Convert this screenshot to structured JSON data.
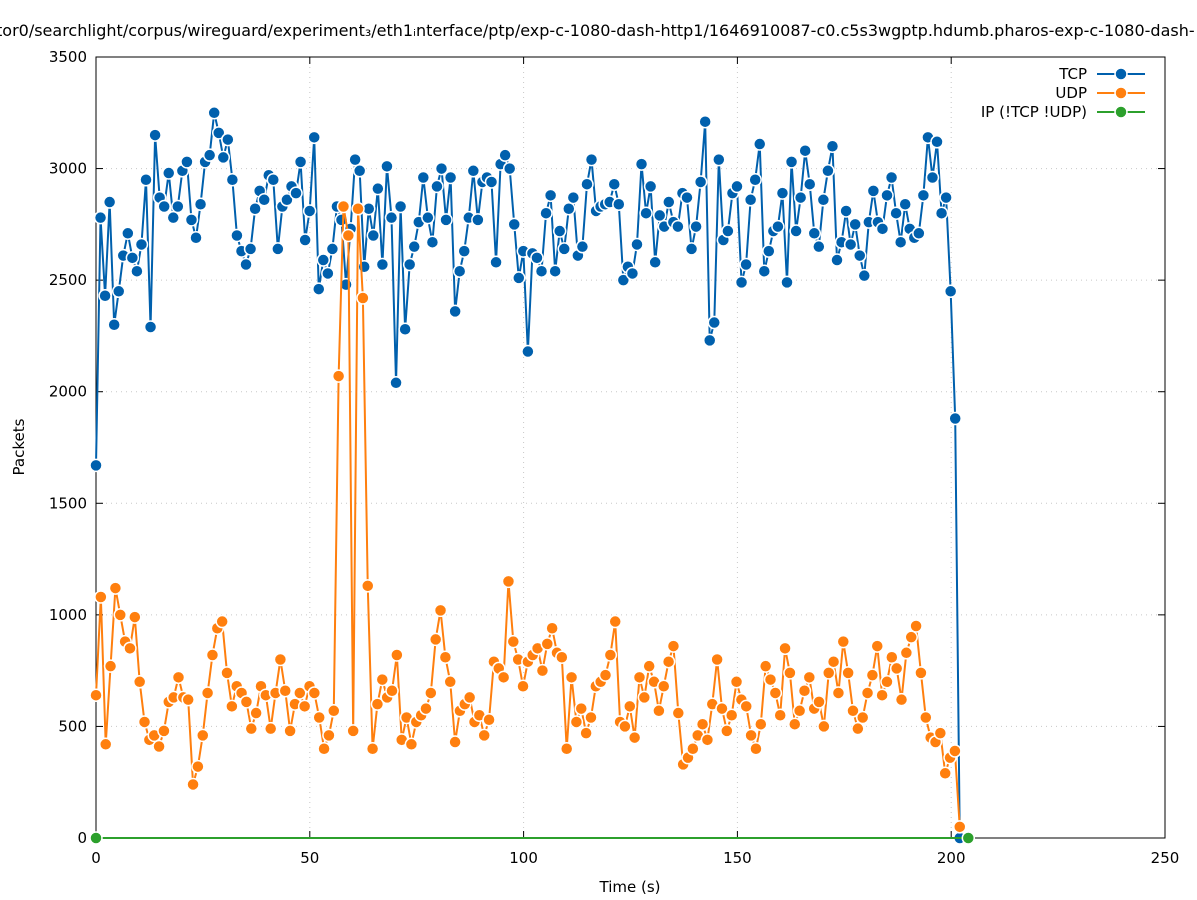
{
  "chart_data": {
    "type": "line",
    "title": "tor0/searchlight/corpus/wireguard/experiment₃/eth1ᵢnterface/ptp/exp-c-1080-dash-http1/1646910087-c0.c5s3wgptp.hdumb.pharos-exp-c-1080-dash-",
    "xlabel": "Time (s)",
    "ylabel": "Packets",
    "xlim": [
      0,
      250
    ],
    "ylim": [
      0,
      3500
    ],
    "xticks": [
      0,
      50,
      100,
      150,
      200,
      250
    ],
    "yticks": [
      0,
      500,
      1000,
      1500,
      2000,
      2500,
      3000,
      3500
    ],
    "grid": true,
    "legend_position": "top-right",
    "series": [
      {
        "name": "TCP",
        "color": "#0060ad",
        "x_range": [
          0,
          202
        ],
        "values": [
          1670,
          2780,
          2430,
          2850,
          2300,
          2450,
          2610,
          2710,
          2600,
          2540,
          2660,
          2950,
          2290,
          3150,
          2870,
          2830,
          2980,
          2780,
          2830,
          2990,
          3030,
          2770,
          2690,
          2840,
          3030,
          3060,
          3250,
          3160,
          3050,
          3130,
          2950,
          2700,
          2630,
          2570,
          2640,
          2820,
          2900,
          2860,
          2970,
          2950,
          2640,
          2830,
          2860,
          2920,
          2890,
          3030,
          2680,
          2810,
          3140,
          2460,
          2590,
          2530,
          2640,
          2830,
          2770,
          2480,
          2730,
          3040,
          2990,
          2560,
          2820,
          2700,
          2910,
          2570,
          3010,
          2780,
          2040,
          2830,
          2280,
          2570,
          2650,
          2760,
          2960,
          2780,
          2670,
          2920,
          3000,
          2770,
          2960,
          2360,
          2540,
          2630,
          2780,
          2990,
          2770,
          2940,
          2960,
          2940,
          2580,
          3020,
          3060,
          3000,
          2750,
          2510,
          2630,
          2180,
          2620,
          2600,
          2540,
          2800,
          2880,
          2540,
          2720,
          2640,
          2820,
          2870,
          2610,
          2650,
          2930,
          3040,
          2810,
          2830,
          2840,
          2850,
          2930,
          2840,
          2500,
          2560,
          2530,
          2660,
          3020,
          2800,
          2920,
          2580,
          2790,
          2740,
          2850,
          2760,
          2740,
          2890,
          2870,
          2640,
          2740,
          2940,
          3210,
          2230,
          2310,
          3040,
          2680,
          2720,
          2890,
          2920,
          2490,
          2570,
          2860,
          2950,
          3110,
          2540,
          2630,
          2720,
          2740,
          2890,
          2490,
          3030,
          2720,
          2870,
          3080,
          2930,
          2710,
          2650,
          2860,
          2990,
          3100,
          2590,
          2670,
          2810,
          2660,
          2750,
          2610,
          2520,
          2760,
          2900,
          2760,
          2730,
          2880,
          2960,
          2800,
          2670,
          2840,
          2730,
          2690,
          2710,
          2880,
          3140,
          2960,
          3120,
          2800,
          2870,
          2450,
          1880,
          0
        ]
      },
      {
        "name": "UDP",
        "color": "#ff7f0e",
        "x_range": [
          0,
          202
        ],
        "values": [
          640,
          1080,
          420,
          770,
          1120,
          1000,
          880,
          850,
          990,
          700,
          520,
          440,
          460,
          410,
          480,
          610,
          630,
          720,
          630,
          620,
          240,
          320,
          460,
          650,
          820,
          940,
          970,
          740,
          590,
          680,
          650,
          610,
          490,
          560,
          680,
          640,
          490,
          650,
          800,
          660,
          480,
          600,
          650,
          590,
          680,
          650,
          540,
          400,
          460,
          570,
          2070,
          2830,
          2700,
          480,
          2820,
          2420,
          1130,
          400,
          600,
          710,
          630,
          660,
          820,
          440,
          540,
          420,
          520,
          550,
          580,
          650,
          890,
          1020,
          810,
          700,
          430,
          570,
          600,
          630,
          520,
          550,
          460,
          530,
          790,
          760,
          720,
          1150,
          880,
          800,
          680,
          790,
          820,
          850,
          750,
          870,
          940,
          830,
          810,
          400,
          720,
          520,
          580,
          470,
          540,
          680,
          700,
          730,
          820,
          970,
          520,
          500,
          590,
          450,
          720,
          630,
          770,
          700,
          570,
          680,
          790,
          860,
          560,
          330,
          360,
          400,
          460,
          510,
          440,
          600,
          800,
          580,
          480,
          550,
          700,
          620,
          590,
          460,
          400,
          510,
          770,
          710,
          650,
          550,
          850,
          740,
          510,
          570,
          660,
          720,
          580,
          610,
          500,
          740,
          790,
          650,
          880,
          740,
          570,
          490,
          540,
          650,
          730,
          860,
          640,
          700,
          810,
          760,
          620,
          830,
          900,
          950,
          740,
          540,
          450,
          430,
          470,
          290,
          360,
          390,
          50
        ]
      },
      {
        "name": "IP (!TCP  !UDP)",
        "color": "#2ca02c",
        "x_range": [
          0,
          204
        ],
        "values": [
          0,
          0
        ]
      }
    ]
  }
}
